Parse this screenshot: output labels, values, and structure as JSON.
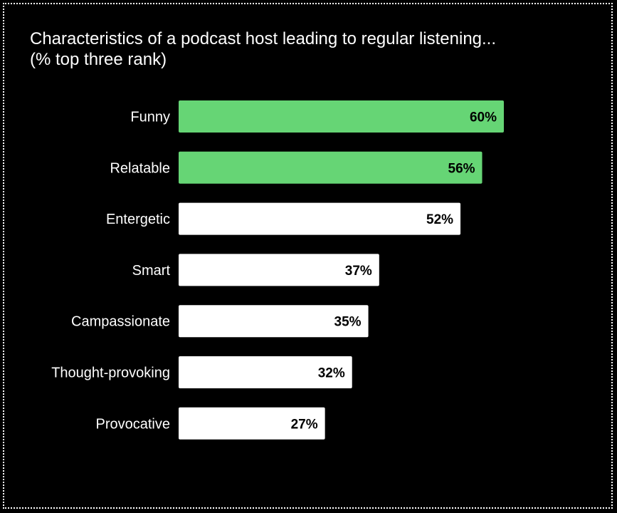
{
  "chart_data": {
    "type": "bar",
    "orientation": "horizontal",
    "title": "Characteristics of a podcast host leading to regular listening...",
    "subtitle": "(% top three rank)",
    "categories": [
      "Funny",
      "Relatable",
      "Entergetic",
      "Smart",
      "Campassionate",
      "Thought-provoking",
      "Provocative"
    ],
    "values": [
      60,
      56,
      52,
      37,
      35,
      32,
      27
    ],
    "value_labels": [
      "60%",
      "56%",
      "52%",
      "37%",
      "35%",
      "32%",
      "27%"
    ],
    "highlight_colors": [
      "#66d575",
      "#66d575",
      "#ffffff",
      "#ffffff",
      "#ffffff",
      "#ffffff",
      "#ffffff"
    ],
    "xlim": [
      0,
      60
    ],
    "grid": false,
    "legend": "none"
  },
  "colors": {
    "background": "#000000",
    "highlight": "#66d575",
    "default_bar": "#ffffff",
    "label_text": "#ffffff",
    "value_text": "#000000"
  }
}
